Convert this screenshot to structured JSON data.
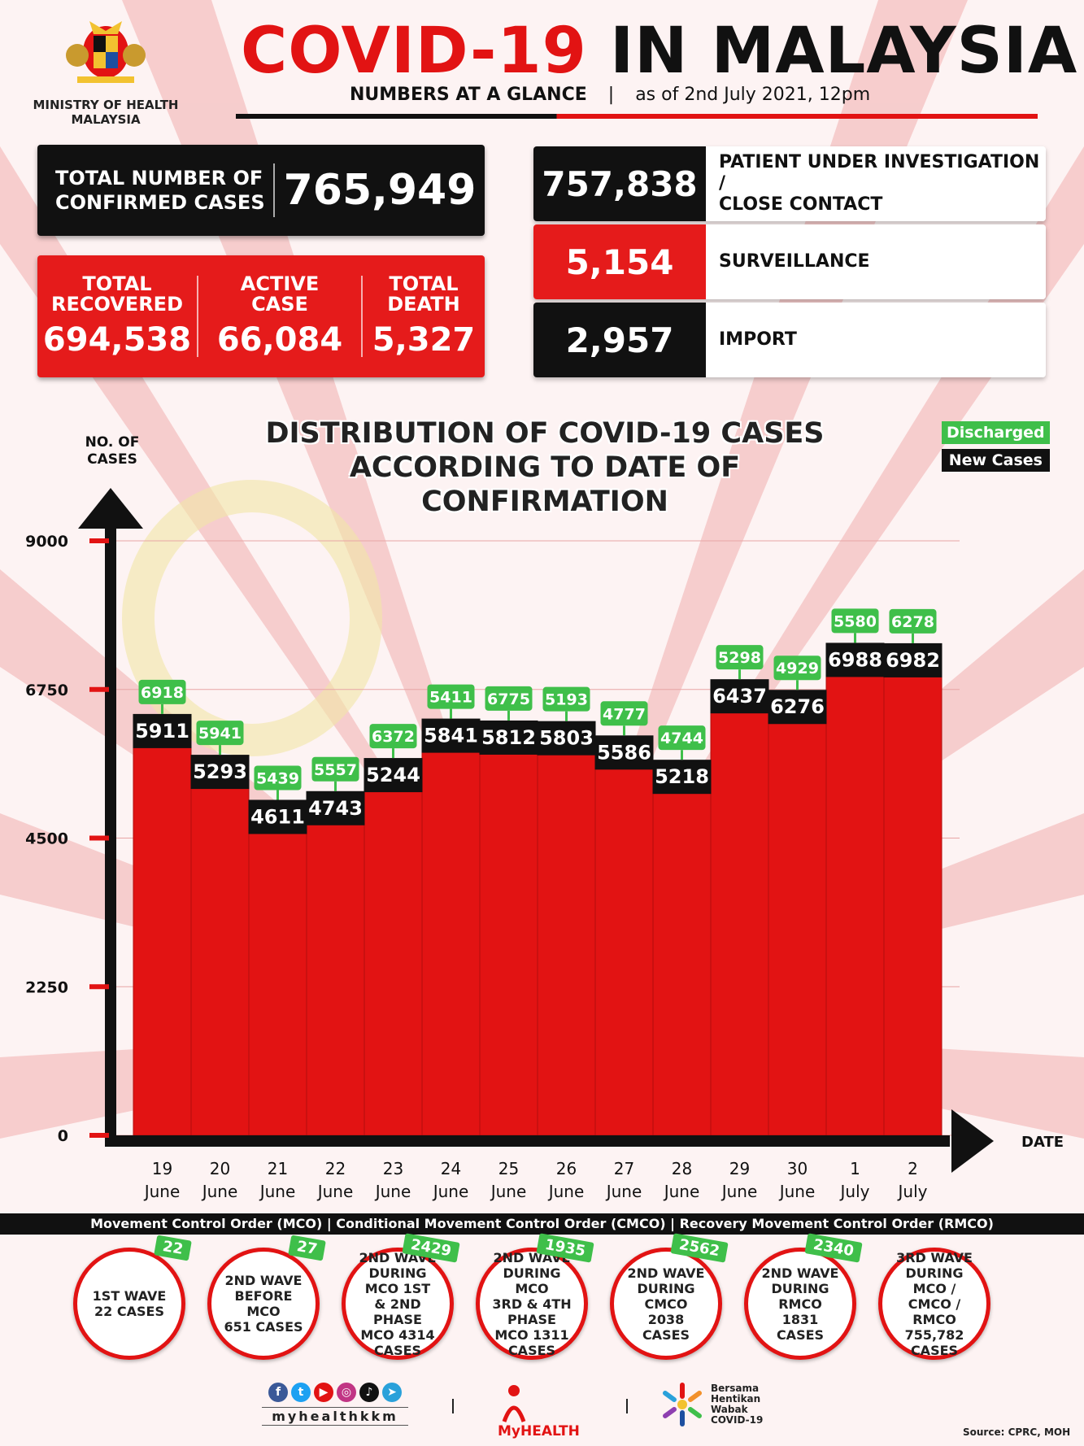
{
  "header": {
    "ministry_line1": "MINISTRY OF HEALTH",
    "ministry_line2": "MALAYSIA",
    "title_red": "COVID-19",
    "title_black": "IN MALAYSIA",
    "subtitle": "NUMBERS AT A GLANCE",
    "separator": "|",
    "as_of": "as of 2nd July 2021, 12pm"
  },
  "stats": {
    "confirmed_label_1": "TOTAL NUMBER OF",
    "confirmed_label_2": "CONFIRMED CASES",
    "confirmed_value": "765,949",
    "recovered_label_1": "TOTAL",
    "recovered_label_2": "RECOVERED",
    "recovered_value": "694,538",
    "active_label_1": "ACTIVE",
    "active_label_2": "CASE",
    "active_value": "66,084",
    "death_label_1": "TOTAL",
    "death_label_2": "DEATH",
    "death_value": "5,327",
    "pui_value": "757,838",
    "pui_label_1": "PATIENT UNDER INVESTIGATION /",
    "pui_label_2": "CLOSE CONTACT",
    "surveillance_value": "5,154",
    "surveillance_label": "SURVEILLANCE",
    "import_value": "2,957",
    "import_label": "IMPORT"
  },
  "chart_data": {
    "type": "bar",
    "title_line1": "DISTRIBUTION OF COVID-19 CASES",
    "title_line2": "ACCORDING TO DATE OF CONFIRMATION",
    "ylabel_line1": "NO. OF",
    "ylabel_line2": "CASES",
    "xlabel": "DATE",
    "ylim": [
      0,
      9000
    ],
    "yticks": [
      "0",
      "2250",
      "4500",
      "6750",
      "9000"
    ],
    "ytick_values": [
      0,
      2250,
      4500,
      6750,
      9000
    ],
    "categories_day": [
      "19",
      "20",
      "21",
      "22",
      "23",
      "24",
      "25",
      "26",
      "27",
      "28",
      "29",
      "30",
      "1",
      "2"
    ],
    "categories_month": [
      "June",
      "June",
      "June",
      "June",
      "June",
      "June",
      "June",
      "June",
      "June",
      "June",
      "June",
      "June",
      "July",
      "July"
    ],
    "legend": [
      "Discharged",
      "New Cases"
    ],
    "series": [
      {
        "name": "New Cases",
        "values": [
          5911,
          5293,
          4611,
          4743,
          5244,
          5841,
          5812,
          5803,
          5586,
          5218,
          6437,
          6276,
          6988,
          6982
        ]
      },
      {
        "name": "Discharged",
        "values": [
          6918,
          5941,
          5439,
          5557,
          6372,
          5411,
          6775,
          5193,
          4777,
          4744,
          5298,
          4929,
          5580,
          6278
        ]
      }
    ],
    "colors": {
      "bar": "#e21313",
      "new_cases_label": "#111111",
      "discharged_label": "#3fbf4a"
    }
  },
  "mco_band": "Movement Control Order (MCO) | Conditional Movement Control Order (CMCO) | Recovery Movement Control Order (RMCO)",
  "waves": [
    {
      "text": "1ST WAVE\n22 CASES",
      "tag": "22"
    },
    {
      "text": "2ND WAVE\nBEFORE MCO\n651 CASES",
      "tag": "27"
    },
    {
      "text": "2ND WAVE\nDURING MCO 1ST\n& 2ND PHASE\nMCO 4314\nCASES",
      "tag": "2429"
    },
    {
      "text": "2ND WAVE\nDURING MCO\n3RD & 4TH PHASE\nMCO 1311\nCASES",
      "tag": "1935"
    },
    {
      "text": "2ND WAVE\nDURING CMCO\n2038 CASES",
      "tag": "2562"
    },
    {
      "text": "2ND WAVE\nDURING RMCO\n1831 CASES",
      "tag": "2340"
    },
    {
      "text": "3RD WAVE\nDURING MCO /\nCMCO / RMCO\n755,782\nCASES",
      "tag": ""
    }
  ],
  "footer": {
    "social_handle": "myhealthkkm",
    "social_icons": [
      "facebook-icon",
      "twitter-icon",
      "youtube-icon",
      "instagram-icon",
      "tiktok-icon",
      "telegram-icon"
    ],
    "myhealth_name": "MyHEALTH",
    "bersama_1": "Bersama",
    "bersama_2": "Hentikan",
    "bersama_3": "Wabak",
    "bersama_4": "COVID-19",
    "source": "Source: CPRC, MOH"
  }
}
